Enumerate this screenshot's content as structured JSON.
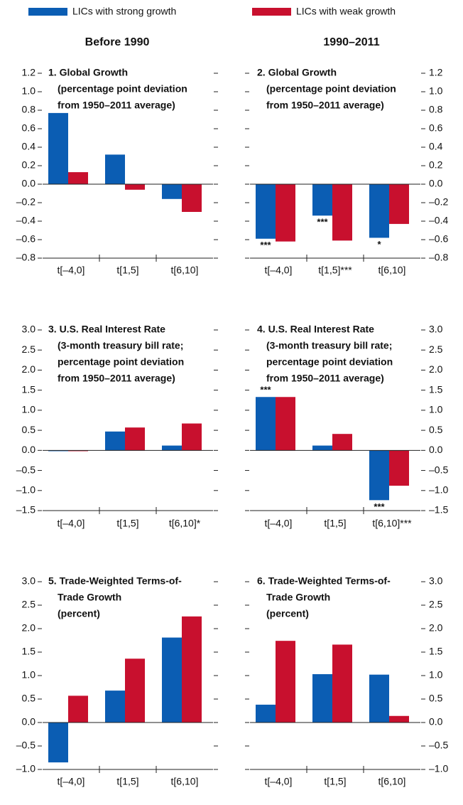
{
  "legend": {
    "series": [
      {
        "name": "LICs with strong growth",
        "color": "#0b5db3"
      },
      {
        "name": "LICs with weak growth",
        "color": "#c8102e"
      }
    ]
  },
  "column_headers": [
    "Before 1990",
    "1990–2011"
  ],
  "chart_data": [
    {
      "type": "bar",
      "title": [
        "1. Global Growth",
        "(percentage point deviation",
        "from 1950–2011 average)"
      ],
      "categories": [
        "t[–4,0]",
        "t[1,5]",
        "t[6,10]"
      ],
      "series": [
        {
          "values": [
            0.77,
            0.32,
            -0.16
          ]
        },
        {
          "values": [
            0.13,
            -0.06,
            -0.3
          ]
        }
      ],
      "ylim": [
        -0.8,
        1.2
      ],
      "yticks": [
        {
          "value": -0.8,
          "label": "–0.8"
        },
        {
          "value": -0.6,
          "label": "–0.6"
        },
        {
          "value": -0.4,
          "label": "–0.4"
        },
        {
          "value": -0.2,
          "label": "–0.2"
        },
        {
          "value": 0,
          "label": "0.0"
        },
        0.2,
        0.4,
        0.6,
        0.8,
        {
          "value": 1,
          "label": "1.0"
        },
        1.2
      ]
    },
    {
      "type": "bar",
      "title": [
        "2. Global Growth",
        "(percentage point deviation",
        "from 1950–2011 average)"
      ],
      "categories": [
        "t[–4,0]",
        "t[1,5]***",
        "t[6,10]"
      ],
      "series": [
        {
          "values": [
            -0.59,
            -0.34,
            -0.58
          ],
          "significance": [
            "***",
            "***",
            "*"
          ]
        },
        {
          "values": [
            -0.62,
            -0.61,
            -0.43
          ]
        }
      ],
      "ylim": [
        -0.8,
        1.2
      ],
      "yticks": [
        {
          "value": -0.8,
          "label": "–0.8"
        },
        {
          "value": -0.6,
          "label": "–0.6"
        },
        {
          "value": -0.4,
          "label": "–0.4"
        },
        {
          "value": -0.2,
          "label": "–0.2"
        },
        {
          "value": 0,
          "label": "0.0"
        },
        0.2,
        0.4,
        0.6,
        0.8,
        {
          "value": 1,
          "label": "1.0"
        },
        1.2
      ]
    },
    {
      "type": "bar",
      "title": [
        "3. U.S. Real Interest Rate",
        "(3-month treasury bill rate;",
        "percentage point deviation",
        "from 1950–2011 average)"
      ],
      "categories": [
        "t[–4,0]",
        "t[1,5]",
        "t[6,10]*"
      ],
      "series": [
        {
          "values": [
            -0.02,
            0.47,
            0.12
          ]
        },
        {
          "values": [
            -0.02,
            0.57,
            0.67
          ]
        }
      ],
      "ylim": [
        -1.5,
        3
      ],
      "yticks": [
        {
          "value": -1.5,
          "label": "–1.5"
        },
        {
          "value": -1,
          "label": "–1.0"
        },
        {
          "value": -0.5,
          "label": "–0.5"
        },
        {
          "value": 0,
          "label": "0.0"
        },
        0.5,
        {
          "value": 1,
          "label": "1.0"
        },
        1.5,
        {
          "value": 2,
          "label": "2.0"
        },
        2.5,
        {
          "value": 3,
          "label": "3.0"
        }
      ]
    },
    {
      "type": "bar",
      "title": [
        "4. U.S. Real Interest Rate",
        "(3-month treasury bill rate;",
        "percentage point deviation",
        "from 1950–2011 average)"
      ],
      "categories": [
        "t[–4,0]",
        "t[1,5]",
        "t[6,10]***"
      ],
      "series": [
        {
          "values": [
            1.33,
            0.12,
            -1.24
          ],
          "significance": [
            "***",
            null,
            "***"
          ]
        },
        {
          "values": [
            1.33,
            0.41,
            -0.88
          ]
        }
      ],
      "ylim": [
        -1.5,
        3
      ],
      "yticks": [
        {
          "value": -1.5,
          "label": "–1.5"
        },
        {
          "value": -1,
          "label": "–1.0"
        },
        {
          "value": -0.5,
          "label": "–0.5"
        },
        {
          "value": 0,
          "label": "0.0"
        },
        0.5,
        {
          "value": 1,
          "label": "1.0"
        },
        1.5,
        {
          "value": 2,
          "label": "2.0"
        },
        2.5,
        {
          "value": 3,
          "label": "3.0"
        }
      ]
    },
    {
      "type": "bar",
      "title": [
        "5. Trade-Weighted Terms-of-",
        "Trade Growth",
        "(percent)"
      ],
      "categories": [
        "t[–4,0]",
        "t[1,5]",
        "t[6,10]"
      ],
      "series": [
        {
          "values": [
            -0.85,
            0.68,
            1.81
          ]
        },
        {
          "values": [
            0.57,
            1.36,
            2.26
          ]
        }
      ],
      "ylim": [
        -1,
        3
      ],
      "yticks": [
        {
          "value": -1,
          "label": "–1.0"
        },
        {
          "value": -0.5,
          "label": "–0.5"
        },
        {
          "value": 0,
          "label": "0.0"
        },
        0.5,
        {
          "value": 1,
          "label": "1.0"
        },
        1.5,
        {
          "value": 2,
          "label": "2.0"
        },
        2.5,
        {
          "value": 3,
          "label": "3.0"
        }
      ]
    },
    {
      "type": "bar",
      "title": [
        "6. Trade-Weighted Terms-of-",
        "Trade Growth",
        "(percent)"
      ],
      "categories": [
        "t[–4,0]",
        "t[1,5]",
        "t[6,10]"
      ],
      "series": [
        {
          "values": [
            0.38,
            1.03,
            1.02
          ]
        },
        {
          "values": [
            1.74,
            1.66,
            0.14
          ]
        }
      ],
      "ylim": [
        -1,
        3
      ],
      "yticks": [
        {
          "value": -1,
          "label": "–1.0"
        },
        {
          "value": -0.5,
          "label": "–0.5"
        },
        {
          "value": 0,
          "label": "0.0"
        },
        0.5,
        {
          "value": 1,
          "label": "1.0"
        },
        1.5,
        {
          "value": 2,
          "label": "2.0"
        },
        2.5,
        {
          "value": 3,
          "label": "3.0"
        }
      ]
    }
  ]
}
